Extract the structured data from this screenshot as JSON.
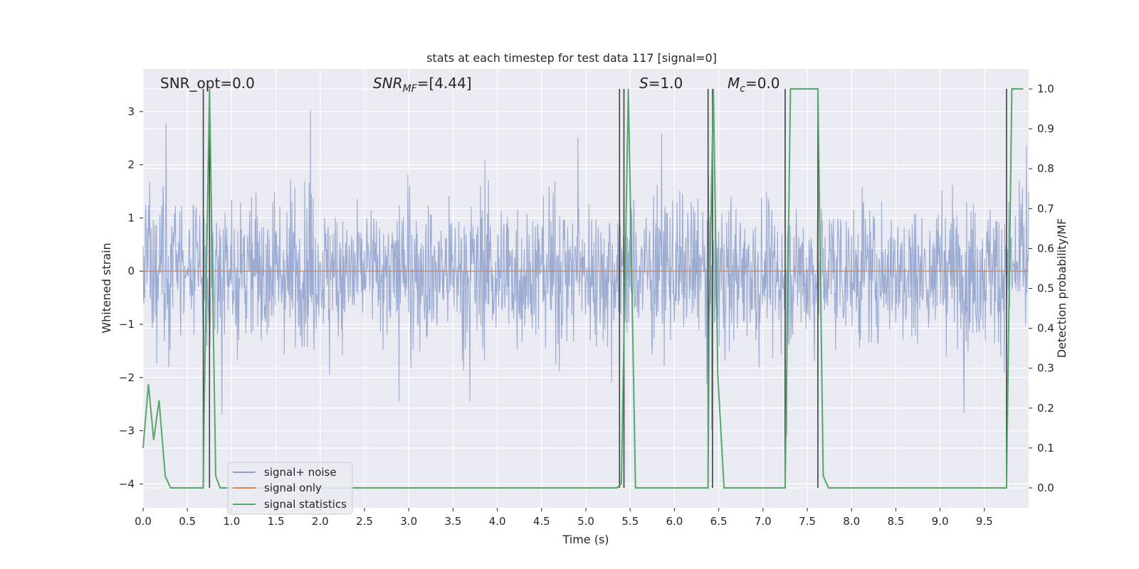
{
  "chart_data": {
    "type": "line",
    "title": "stats at each timestep for test data 117 [signal=0]",
    "xlabel": "Time (s)",
    "ylabel": "Whitened strain",
    "y2label": "Detection probability/MF",
    "xlim": [
      0.0,
      10.0
    ],
    "ylim": [
      -4.45,
      3.8
    ],
    "y2lim": [
      -0.05,
      1.05
    ],
    "xticks": [
      "0.0",
      "0.5",
      "1.0",
      "1.5",
      "2.0",
      "2.5",
      "3.0",
      "3.5",
      "4.0",
      "4.5",
      "5.0",
      "5.5",
      "6.0",
      "6.5",
      "7.0",
      "7.5",
      "8.0",
      "8.5",
      "9.0",
      "9.5"
    ],
    "xtick_values": [
      0.0,
      0.5,
      1.0,
      1.5,
      2.0,
      2.5,
      3.0,
      3.5,
      4.0,
      4.5,
      5.0,
      5.5,
      6.0,
      6.5,
      7.0,
      7.5,
      8.0,
      8.5,
      9.0,
      9.5
    ],
    "yticks": [
      "−4",
      "−3",
      "−2",
      "−1",
      "0",
      "1",
      "2",
      "3"
    ],
    "ytick_values": [
      -4,
      -3,
      -2,
      -1,
      0,
      1,
      2,
      3
    ],
    "y2ticks": [
      "0.0",
      "0.1",
      "0.2",
      "0.3",
      "0.4",
      "0.5",
      "0.6",
      "0.7",
      "0.8",
      "0.9",
      "1.0"
    ],
    "y2tick_values": [
      0.0,
      0.1,
      0.2,
      0.3,
      0.4,
      0.5,
      0.6,
      0.7,
      0.8,
      0.9,
      1.0
    ],
    "grid": true,
    "legend_position": "lower-left",
    "annotations": {
      "snr_opt": "SNR_opt=0.0",
      "snr_mf_main": "SNR",
      "snr_mf_sub": "MF",
      "snr_mf_value": "=[4.44]",
      "s_symbol": "S",
      "s_value": "=1.0",
      "mc_symbol": "M",
      "mc_sub": "c",
      "mc_value": "=0.0"
    },
    "series": [
      {
        "name": "signal+ noise",
        "color": "#8da0cb",
        "axis": "left",
        "kind": "noise",
        "sample_rate_hz": 200,
        "typical_range": [
          -2.0,
          2.0
        ],
        "peak_range": [
          -3.1,
          3.4
        ]
      },
      {
        "name": "signal only",
        "color": "#dd8452",
        "axis": "left",
        "x": [
          0.0,
          10.0
        ],
        "y": [
          0.0,
          0.0
        ]
      },
      {
        "name": "signal statistics",
        "color": "#55a868",
        "axis": "right",
        "x": [
          0.0,
          0.06,
          0.12,
          0.18,
          0.25,
          0.31,
          0.68,
          0.69,
          0.75,
          0.82,
          0.87,
          5.35,
          5.4,
          5.48,
          5.56,
          6.38,
          6.39,
          6.44,
          6.49,
          6.56,
          7.25,
          7.31,
          7.62,
          7.68,
          7.74,
          9.75,
          9.81,
          9.94
        ],
        "y": [
          0.1,
          0.26,
          0.12,
          0.22,
          0.03,
          0.0,
          0.0,
          0.2,
          1.0,
          0.03,
          0.0,
          0.0,
          0.01,
          1.0,
          0.0,
          0.0,
          0.4,
          1.0,
          0.28,
          0.0,
          0.0,
          1.0,
          1.0,
          0.03,
          0.0,
          0.0,
          1.0,
          1.0
        ]
      }
    ],
    "vertical_markers": {
      "color": "#404040",
      "x": [
        0.68,
        0.75,
        5.38,
        5.43,
        6.38,
        6.43,
        7.25,
        7.62,
        9.75
      ],
      "ymax": 1.0
    }
  }
}
